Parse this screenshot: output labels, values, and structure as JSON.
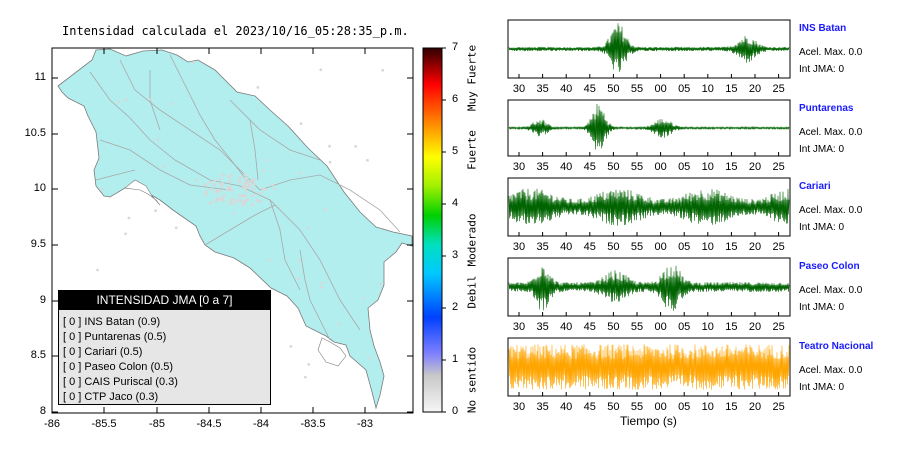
{
  "map": {
    "title": "Intensidad calculada el 2023/10/16_05:28:35_p.m.",
    "x_ticks": [
      "-86",
      "-85.5",
      "-85",
      "-84.5",
      "-84",
      "-83.5",
      "-83"
    ],
    "y_ticks": [
      "11",
      "10.5",
      "10",
      "9.5",
      "9",
      "8.5",
      "8"
    ],
    "land_color": "#b3eeee",
    "road_color": "#a0a0a0"
  },
  "colorbar": {
    "ticks": [
      "7",
      "6",
      "5",
      "4",
      "3",
      "2",
      "1",
      "0"
    ],
    "category_labels": [
      "Muy Fuerte",
      "Fuerte",
      "Moderado",
      "Debil",
      "No sentido"
    ]
  },
  "legend": {
    "title": "INTENSIDAD JMA [0 a 7]",
    "items": [
      "[ 0 ]  INS Batan (0.9)",
      "[ 0 ]  Puntarenas (0.5)",
      "[ 0 ]  Cariari (0.5)",
      "[ 0 ]  Paseo Colon (0.5)",
      "[ 0 ]  CAIS Puriscal (0.3)",
      "[ 0 ]  CTP Jaco (0.3)"
    ]
  },
  "stations": [
    {
      "name": "INS Batan",
      "accel": "Acel. Max. 0.0",
      "jma": "Int JMA: 0",
      "color": "#006400",
      "ticks": [
        "30",
        "35",
        "40",
        "45",
        "50",
        "55",
        "00",
        "05",
        "10",
        "15",
        "20",
        "25"
      ]
    },
    {
      "name": "Puntarenas",
      "accel": "Acel. Max. 0.0",
      "jma": "Int JMA: 0",
      "color": "#006400",
      "ticks": [
        "30",
        "35",
        "40",
        "45",
        "50",
        "55",
        "00",
        "05",
        "10",
        "15",
        "20",
        "25"
      ]
    },
    {
      "name": "Cariari",
      "accel": "Acel. Max. 0.0",
      "jma": "Int JMA: 0",
      "color": "#006400",
      "ticks": [
        "30",
        "35",
        "40",
        "45",
        "50",
        "55",
        "00",
        "05",
        "10",
        "15",
        "20",
        "25"
      ]
    },
    {
      "name": "Paseo Colon",
      "accel": "Acel. Max. 0.0",
      "jma": "Int JMA: 0",
      "color": "#006400",
      "ticks": [
        "30",
        "35",
        "40",
        "45",
        "50",
        "55",
        "00",
        "05",
        "10",
        "15",
        "20",
        "25"
      ]
    },
    {
      "name": "Teatro Nacional",
      "accel": "Acel. Max. 0.0",
      "jma": "Int JMA: 0",
      "color": "#ffa500",
      "ticks": [
        "30",
        "35",
        "40",
        "45",
        "50",
        "55",
        "00",
        "05",
        "10",
        "15",
        "20",
        "25"
      ]
    }
  ],
  "waveform_xlabel": "Tiempo (s)"
}
